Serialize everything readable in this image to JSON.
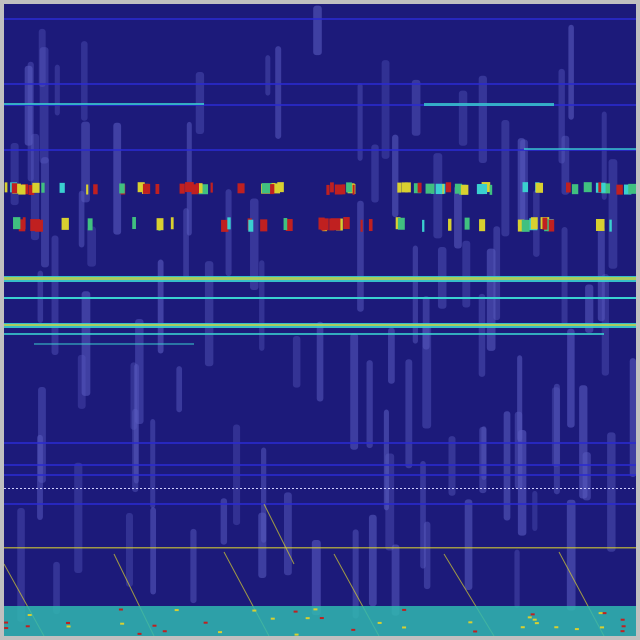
{
  "image": {
    "kind": "spectrogram-heatmap",
    "colors": {
      "frame": "#c0c0c0",
      "background": "#1c1a7a",
      "streak": "#5a5cc0",
      "blue_line": "#2a2ad0",
      "cyan": "#3ad0d0",
      "yellow": "#d8d030",
      "red": "#c02020",
      "green": "#40c080",
      "bottom_band": "#30b8b0"
    }
  }
}
